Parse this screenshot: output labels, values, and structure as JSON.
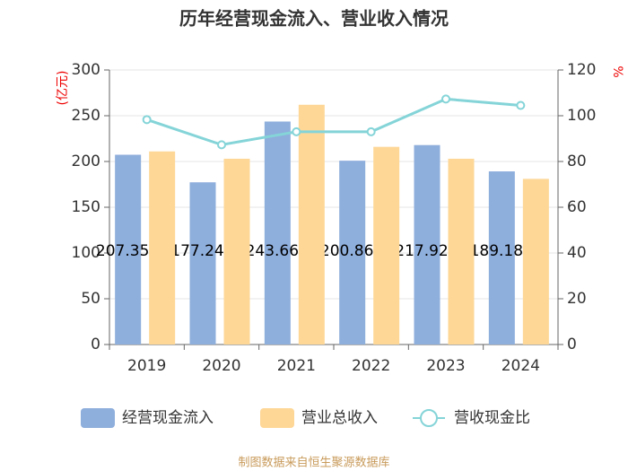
{
  "chart_data": {
    "type": "bar_line",
    "title": "历年经营现金流入、营业收入情况",
    "y_label": "(亿元)",
    "y2_label": "%",
    "categories": [
      "2019",
      "2020",
      "2021",
      "2022",
      "2023",
      "2024"
    ],
    "series": [
      {
        "name": "经营现金流入",
        "color": "#8eaedc",
        "type": "bar",
        "values": [
          207.35,
          177.24,
          243.66,
          200.86,
          217.92,
          189.18
        ]
      },
      {
        "name": "营业总收入",
        "color": "#fed797",
        "type": "bar",
        "values": [
          211,
          203,
          262,
          216,
          203,
          181
        ]
      },
      {
        "name": "营收现金比",
        "color": "#84d4d8",
        "type": "line",
        "axis": "y2",
        "values": [
          98.3,
          87.3,
          93,
          93,
          107.3,
          104.5
        ]
      }
    ],
    "ylim": [
      0,
      300
    ],
    "yticks": [
      0,
      50,
      100,
      150,
      200,
      250,
      300
    ],
    "y2lim": [
      0,
      120
    ],
    "y2ticks": [
      0,
      20,
      40,
      60,
      80,
      100,
      120
    ],
    "grid": true,
    "legend": "bottom",
    "source": "制图数据来自恒生聚源数据库"
  }
}
